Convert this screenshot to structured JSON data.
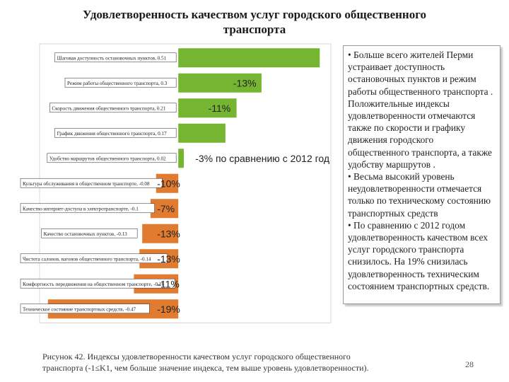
{
  "title": "Удовлетворенность качеством услуг городского общественного транспорта",
  "chart_data": {
    "type": "bar",
    "orientation": "horizontal",
    "title": "Удовлетворенность качеством услуг городского общественного транспорта",
    "xlim": [
      -0.5,
      0.55
    ],
    "colors": {
      "positive": "#76b531",
      "negative": "#e07b30"
    },
    "categories": [
      "Шаговая доступность остановочных пунктов, 0.51",
      "Режим работы общественного транспорта, 0.3",
      "Скорость движения общественного транспорта, 0.21",
      "График движения общественного транспорта, 0.17",
      "Удобство маршрутов общественного транспорта, 0.02",
      "Культура обслуживания в общественном транспорте, -0.08",
      "Качество интернет-доступа в электротранспорте, -0.1",
      "Качество остановочных пунктов, -0.13",
      "Чистота салонов, вагонов общественного транспорта, -0.14",
      "Комфортность передвижения на общественном транспорте, -0.16",
      "Техническое состояние транспортных средств, -0.47"
    ],
    "values": [
      0.51,
      0.3,
      0.21,
      0.17,
      0.02,
      -0.08,
      -0.1,
      -0.13,
      -0.14,
      -0.16,
      -0.47
    ],
    "annotations": [
      "",
      "-13%",
      "-11%",
      "",
      "-3% по сравнению с 2012 год",
      "-10%",
      "-7%",
      "-13%",
      "-13%",
      "-11%",
      "-19%"
    ]
  },
  "note": {
    "bullets": [
      "• Больше всего жителей Перми устраивает доступность остановочных пунктов и режим работы общественного транспорта . Положительные индексы удовлетворенности отмечаются также по скорости и графику движения городского общественного транспорта, а также удобству маршрутов .",
      "• Весьма высокий уровень неудовлетворенности отмечается только по техническому состоянию транспортных средств",
      "• По сравнению с 2012 годом удовлетворенность качеством всех услуг городского транспорта снизилось. На 19% снизилась удовлетворенность техническим состоянием транспортных средств."
    ]
  },
  "caption": "Рисунок 42. Индексы удовлетворенности качеством услуг городского общественного транспорта (-1≤K1, чем больше значение индекса, тем выше уровень удовлетворенности).",
  "page_number": "28"
}
